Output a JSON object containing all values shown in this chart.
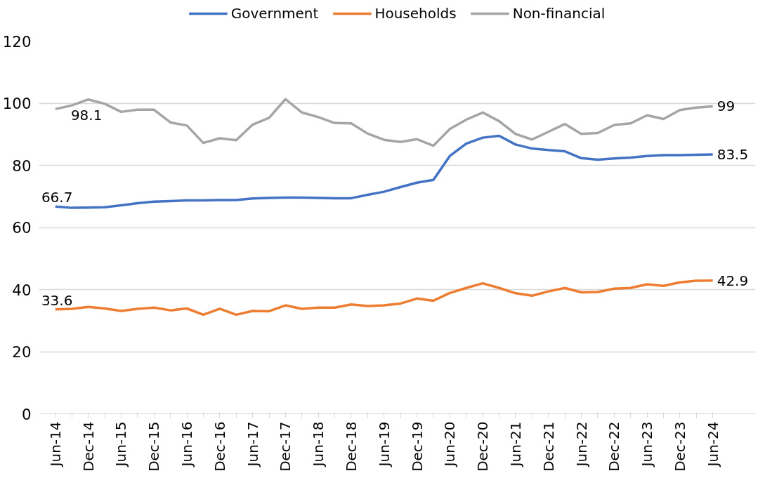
{
  "chart_data": {
    "type": "line",
    "categories": [
      "Jun-14",
      null,
      "Dec-14",
      null,
      "Jun-15",
      null,
      "Dec-15",
      null,
      "Jun-16",
      null,
      "Dec-16",
      null,
      "Jun-17",
      null,
      "Dec-17",
      null,
      "Jun-18",
      null,
      "Dec-18",
      null,
      "Jun-19",
      null,
      "Dec-19",
      null,
      "Jun-20",
      null,
      "Dec-20",
      null,
      "Jun-21",
      null,
      "Dec-21",
      null,
      "Jun-22",
      null,
      "Dec-22",
      null,
      "Jun-23",
      null,
      "Dec-23",
      null,
      "Jun-24"
    ],
    "series": [
      {
        "name": "Government",
        "color": "#4472c4",
        "values": [
          66.7,
          66.3,
          66.4,
          66.5,
          67.1,
          67.8,
          68.3,
          68.5,
          68.7,
          68.7,
          68.8,
          68.8,
          69.3,
          69.5,
          69.6,
          69.6,
          69.5,
          69.4,
          69.4,
          70.5,
          71.5,
          73,
          74.4,
          75.3,
          83,
          87,
          88.9,
          89.5,
          86.7,
          85.4,
          84.9,
          84.5,
          82.3,
          81.8,
          82.2,
          82.5,
          83,
          83.3,
          83.3,
          83.4,
          83.5
        ]
      },
      {
        "name": "Households",
        "color": "#ed7d31",
        "values": [
          33.6,
          33.8,
          34.4,
          33.9,
          33.1,
          33.8,
          34.2,
          33.3,
          33.9,
          31.9,
          33.8,
          31.9,
          33.1,
          33,
          34.9,
          33.8,
          34.2,
          34.2,
          35.2,
          34.7,
          34.9,
          35.5,
          37.1,
          36.4,
          38.9,
          40.5,
          42,
          40.5,
          38.8,
          38,
          39.4,
          40.5,
          39.1,
          39.2,
          40.3,
          40.5,
          41.7,
          41.2,
          42.3,
          42.8,
          42.9
        ]
      },
      {
        "name": "Non-financial",
        "color": "#a5a5a5",
        "values": [
          98.1,
          99.3,
          101.2,
          99.8,
          97.2,
          97.9,
          97.9,
          93.8,
          92.8,
          87.2,
          88.7,
          88.1,
          93.1,
          95.3,
          101.3,
          97,
          95.5,
          93.6,
          93.5,
          90.2,
          88.2,
          87.5,
          88.4,
          86.3,
          91.7,
          94.7,
          97,
          94.2,
          90.1,
          88.3,
          90.8,
          93.3,
          90.1,
          90.4,
          93,
          93.5,
          96.1,
          94.9,
          97.8,
          98.6,
          99
        ]
      }
    ],
    "annotations": [
      {
        "text": "66.7",
        "x": "Jun-14",
        "y": 66.7
      },
      {
        "text": "98.1",
        "x": "Jun-14",
        "y": 98.1
      },
      {
        "text": "33.6",
        "x": "Jun-14",
        "y": 33.6
      },
      {
        "text": "83.5",
        "x": "Jun-24",
        "y": 83.5
      },
      {
        "text": "99",
        "x": "Jun-24",
        "y": 99
      },
      {
        "text": "42.9",
        "x": "Jun-24",
        "y": 42.9
      }
    ],
    "ylim": [
      0,
      120
    ],
    "yticks": [
      0,
      20,
      40,
      60,
      80,
      100,
      120
    ],
    "grid": "y",
    "legend": "top",
    "marker": "none",
    "line_style": "solid"
  }
}
